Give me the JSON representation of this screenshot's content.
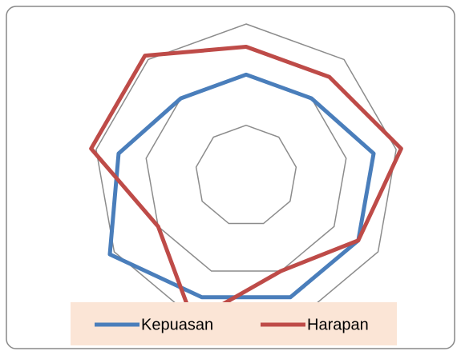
{
  "chart_data": {
    "type": "radar",
    "categories": [
      null,
      null,
      null,
      null,
      null,
      null,
      null,
      null,
      null
    ],
    "series": [
      {
        "name": "Kepuasan",
        "color": "#4a7ebb",
        "values": [
          2,
          2,
          2.55,
          2.55,
          2.55,
          2.55,
          3.1,
          2.55,
          2
        ]
      },
      {
        "name": "Harapan",
        "color": "#be4b48",
        "values": [
          2.55,
          2.55,
          3.1,
          2.55,
          2,
          3.05,
          2,
          3.1,
          3.1
        ]
      }
    ],
    "ylim": [
      0,
      3
    ],
    "yticks": [
      1,
      2,
      3
    ],
    "grid": true,
    "legend": "bottom"
  }
}
